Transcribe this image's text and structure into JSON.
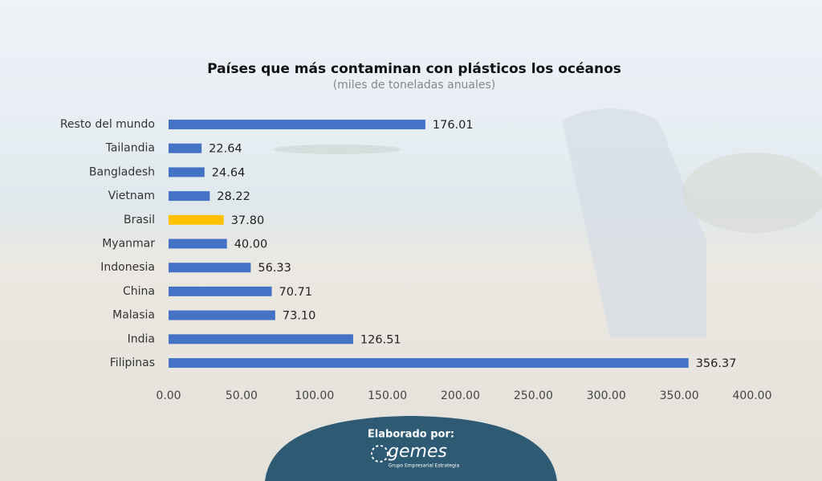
{
  "chart_data": {
    "type": "bar",
    "orientation": "horizontal",
    "title": "Países que más contaminan con plásticos los océanos",
    "subtitle": "(miles de toneladas anuales)",
    "categories": [
      "Resto del mundo",
      "Tailandia",
      "Bangladesh",
      "Vietnam",
      "Brasil",
      "Myanmar",
      "Indonesia",
      "China",
      "Malasia",
      "India",
      "Filipinas"
    ],
    "values": [
      176.01,
      22.64,
      24.64,
      28.22,
      37.8,
      40,
      56.33,
      70.71,
      73.1,
      126.51,
      356.37
    ],
    "value_labels": [
      "176.01",
      "22.64",
      "24.64",
      "28.22",
      "37.80",
      "40.00",
      "56.33",
      "70.71",
      "73.10",
      "126.51",
      "356.37"
    ],
    "colors": [
      "#4472c4",
      "#4472c4",
      "#4472c4",
      "#4472c4",
      "#ffc000",
      "#4472c4",
      "#4472c4",
      "#4472c4",
      "#4472c4",
      "#4472c4",
      "#4472c4"
    ],
    "xlim": [
      0,
      400
    ],
    "xticks": [
      {
        "value": 0,
        "label": "0.00"
      },
      {
        "value": 50,
        "label": "50.00"
      },
      {
        "value": 100,
        "label": "100.00"
      },
      {
        "value": 150,
        "label": "150.00"
      },
      {
        "value": 200,
        "label": "200.00"
      },
      {
        "value": 250,
        "label": "250.00"
      },
      {
        "value": 300,
        "label": "300.00"
      },
      {
        "value": 350,
        "label": "350.00"
      },
      {
        "value": 400,
        "label": "400.00"
      }
    ],
    "grid": false
  },
  "footer": {
    "label": "Elaborado por:",
    "logo": "gemes",
    "tagline": "Grupo Empresarial Estrategia"
  }
}
